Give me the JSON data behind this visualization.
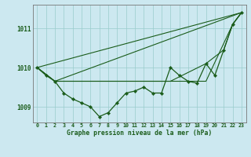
{
  "title": "Graphe pression niveau de la mer (hPa)",
  "background_color": "#cce8f0",
  "grid_color": "#99cccc",
  "line_color": "#1a5c1a",
  "xlim": [
    -0.5,
    23.5
  ],
  "ylim": [
    1008.6,
    1011.6
  ],
  "yticks": [
    1009,
    1010,
    1011
  ],
  "xticks": [
    0,
    1,
    2,
    3,
    4,
    5,
    6,
    7,
    8,
    9,
    10,
    11,
    12,
    13,
    14,
    15,
    16,
    17,
    18,
    19,
    20,
    21,
    22,
    23
  ],
  "hours": [
    0,
    1,
    2,
    3,
    4,
    5,
    6,
    7,
    8,
    9,
    10,
    11,
    12,
    13,
    14,
    15,
    16,
    17,
    18,
    19,
    20,
    21,
    22,
    23
  ],
  "pressure": [
    1010.0,
    1009.8,
    1009.65,
    1009.35,
    1009.2,
    1009.1,
    1009.0,
    1008.75,
    1008.85,
    1009.1,
    1009.35,
    1009.4,
    1009.5,
    1009.35,
    1009.35,
    1010.0,
    1009.8,
    1009.65,
    1009.6,
    1010.1,
    1009.8,
    1010.45,
    1011.1,
    1011.4
  ],
  "line1_x": [
    0,
    23
  ],
  "line1_y": [
    1010.0,
    1011.4
  ],
  "line2_x": [
    0,
    2,
    23
  ],
  "line2_y": [
    1010.0,
    1009.65,
    1011.4
  ],
  "line3_x": [
    0,
    2,
    19,
    22,
    23
  ],
  "line3_y": [
    1010.0,
    1009.65,
    1009.65,
    1011.1,
    1011.4
  ],
  "line4_x": [
    0,
    2,
    15,
    19,
    21,
    22,
    23
  ],
  "line4_y": [
    1010.0,
    1009.65,
    1009.65,
    1010.1,
    1010.45,
    1011.1,
    1011.4
  ]
}
